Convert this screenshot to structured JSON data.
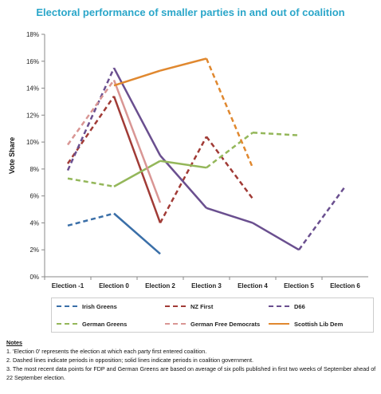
{
  "chart_data": {
    "type": "line",
    "title": "Electoral performance of smaller parties in and out of coalition",
    "ylabel": "Vote Share",
    "xlabel": "",
    "categories": [
      "Election -1",
      "Election 0",
      "Election 2",
      "Election 3",
      "Election 4",
      "Election 5",
      "Election 6"
    ],
    "ylim": [
      0,
      18
    ],
    "yticks": [
      "0%",
      "2%",
      "4%",
      "6%",
      "8%",
      "10%",
      "12%",
      "14%",
      "16%",
      "18%"
    ],
    "grid": false,
    "legend_position": "bottom",
    "series": [
      {
        "name": "Irish Greens",
        "color": "#3a6fa8",
        "points": [
          [
            0,
            3.8
          ],
          [
            1,
            4.7
          ],
          [
            2,
            1.7
          ]
        ],
        "styles": [
          "dashed",
          "solid"
        ]
      },
      {
        "name": "NZ First",
        "color": "#a13b36",
        "points": [
          [
            0,
            8.4
          ],
          [
            1,
            13.4
          ],
          [
            2,
            4.0
          ],
          [
            3,
            10.4
          ],
          [
            4,
            5.8
          ]
        ],
        "styles": [
          "dashed",
          "solid",
          "dashed",
          "dashed"
        ]
      },
      {
        "name": "D66",
        "color": "#6a4f8f",
        "points": [
          [
            0,
            7.9
          ],
          [
            1,
            15.5
          ],
          [
            2,
            9.0
          ],
          [
            3,
            5.1
          ],
          [
            4,
            4.0
          ],
          [
            5,
            2.0
          ],
          [
            6,
            6.7
          ]
        ],
        "styles": [
          "dashed",
          "solid",
          "solid",
          "solid",
          "solid",
          "dashed"
        ]
      },
      {
        "name": "German Greens",
        "color": "#94b75a",
        "points": [
          [
            0,
            7.3
          ],
          [
            1,
            6.7
          ],
          [
            2,
            8.6
          ],
          [
            3,
            8.1
          ],
          [
            4,
            10.7
          ],
          [
            5,
            10.5
          ]
        ],
        "styles": [
          "dashed",
          "solid",
          "solid",
          "dashed",
          "dashed"
        ]
      },
      {
        "name": "German Free Democrats",
        "color": "#d99694",
        "points": [
          [
            0,
            9.8
          ],
          [
            1,
            14.6
          ],
          [
            2,
            5.5
          ]
        ],
        "styles": [
          "dashed",
          "solid"
        ]
      },
      {
        "name": "Scottish Lib Dem",
        "color": "#e0882f",
        "points": [
          [
            1,
            14.2
          ],
          [
            2,
            15.3
          ],
          [
            3,
            16.2
          ],
          [
            4,
            8.1
          ]
        ],
        "styles": [
          "solid",
          "solid",
          "dashed"
        ]
      }
    ]
  },
  "notes": {
    "heading": "Notes",
    "lines": [
      "1. 'Election 0' represents the election at which each party first entered coalition.",
      "2. Dashed lines indicate periods in opposition; solid lines indicate periods in coalition government.",
      "3. The most recent data points for FDP and German Greens are based on average of six polls published in first two weeks of September ahead of 22 September election."
    ]
  }
}
